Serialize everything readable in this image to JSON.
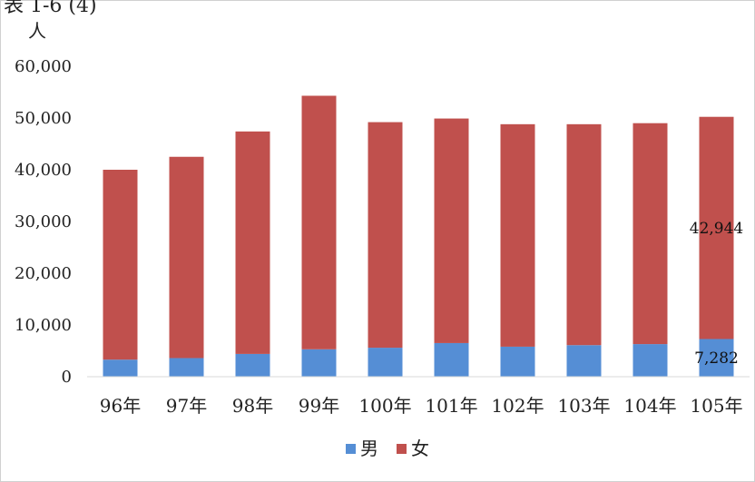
{
  "caption": "表 1-6 (4)",
  "chart_data": {
    "type": "bar",
    "stacked": true,
    "categories": [
      "96年",
      "97年",
      "98年",
      "99年",
      "100年",
      "101年",
      "102年",
      "103年",
      "104年",
      "105年"
    ],
    "series": [
      {
        "name": "男",
        "color": "#558ed5",
        "values": [
          3300,
          3600,
          4400,
          5300,
          5600,
          6500,
          5800,
          6100,
          6300,
          7282
        ]
      },
      {
        "name": "女",
        "color": "#c0504d",
        "values": [
          36700,
          38900,
          43000,
          49000,
          43600,
          43400,
          43000,
          42700,
          42700,
          42944
        ]
      }
    ],
    "ylabel": "人",
    "ylim": [
      0,
      60000
    ],
    "yticks": [
      "0",
      "10,000",
      "20,000",
      "30,000",
      "40,000",
      "50,000",
      "60,000"
    ],
    "yticks_values": [
      0,
      10000,
      20000,
      30000,
      40000,
      50000,
      60000
    ],
    "grid": false,
    "legend_position": "bottom",
    "data_labels": [
      {
        "category": "105年",
        "series": "女",
        "text": "42,944"
      },
      {
        "category": "105年",
        "series": "男",
        "text": "7,282"
      }
    ]
  }
}
